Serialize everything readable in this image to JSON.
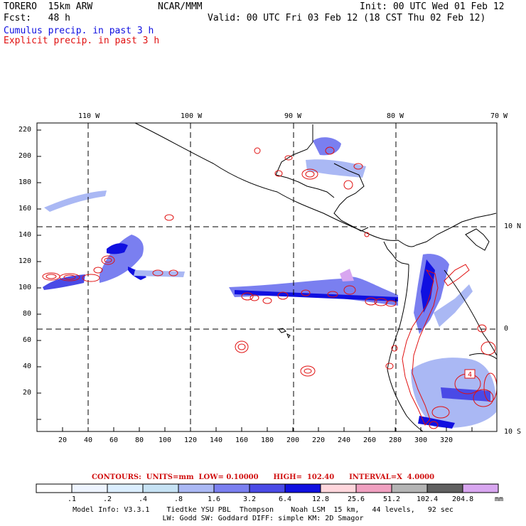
{
  "header": {
    "model": "TORERO  15km ARW",
    "org": "NCAR/MMM",
    "init": "Init: 00 UTC Wed 01 Feb 12",
    "fcst": "Fcst:   48 h",
    "valid": "Valid: 00 UTC Fri 03 Feb 12 (18 CST Thu 02 Feb 12)",
    "field1": "Cumulus precip. in past 3 h",
    "field2": "Explicit precip. in past 3 h"
  },
  "map": {
    "top_lon_labels": [
      "110 W",
      "100 W",
      "90 W",
      "80 W",
      "70 W"
    ],
    "right_lat_labels": [
      "10 N",
      "0",
      "10 S"
    ],
    "left_grid_labels": [
      "220",
      "200",
      "180",
      "160",
      "140",
      "120",
      "100",
      "80",
      "60",
      "40",
      "20"
    ],
    "bottom_grid_labels": [
      "20",
      "40",
      "60",
      "80",
      "100",
      "120",
      "140",
      "160",
      "180",
      "200",
      "220",
      "240",
      "260",
      "280",
      "300",
      "320"
    ],
    "box_label": "4"
  },
  "contours_text": "CONTOURS:  UNITS=mm  LOW= 0.10000      HIGH=  102.40      INTERVAL=X  4.0000",
  "colorbar": {
    "labels": [
      ".1",
      ".2",
      ".4",
      ".8",
      "1.6",
      "3.2",
      "6.4",
      "12.8",
      "25.6",
      "51.2",
      "102.4",
      "204.8"
    ],
    "unit": "mm",
    "colors": [
      "#ffffff",
      "#eef4ff",
      "#dbeeff",
      "#c6e2f4",
      "#aab8f4",
      "#7a7ff0",
      "#4a4ae6",
      "#1010e0",
      "#ffd6dc",
      "#f0a0c0",
      "#b4b4b4",
      "#606060",
      "#d8a6f0"
    ]
  },
  "model_info": {
    "line1": "Model Info: V3.3.1    Tiedtke YSU PBL  Thompson    Noah LSM  15 km,   44 levels,   92 sec",
    "line2": "LW: Godd SW: Goddard DIFF: simple KM: 2D Smagor"
  }
}
